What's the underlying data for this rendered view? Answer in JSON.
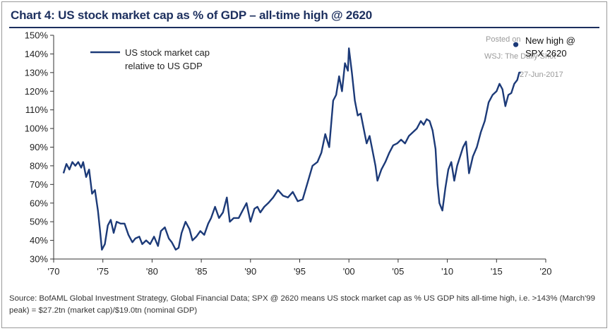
{
  "title": "Chart 4: US stock market cap as % of GDP – all-time high @ 2620",
  "source": "Source: BofAML Global Investment Strategy, Global Financial Data; SPX @ 2620 means US stock market cap as % US GDP hits all-time high, i.e. >143% (March'99 peak) = $27.2tn (market cap)/$19.0tn (nominal GDP)",
  "watermark": {
    "line1": "Posted on",
    "line2": "WSJ: The Daily Shot",
    "line3": "27-Jun-2017"
  },
  "colors": {
    "series": "#1c3a78",
    "axis": "#333333",
    "title": "#1c2f5e"
  },
  "chart_data": {
    "type": "line",
    "title": "Chart 4: US stock market cap as % of GDP – all-time high @ 2620",
    "xlabel": "",
    "ylabel": "",
    "xlim": [
      1970,
      2020
    ],
    "ylim": [
      30,
      150
    ],
    "x_ticks": [
      1970,
      1975,
      1980,
      1985,
      1990,
      1995,
      2000,
      2005,
      2010,
      2015,
      2020
    ],
    "x_tick_labels": [
      "'70",
      "'75",
      "'80",
      "'85",
      "'90",
      "'95",
      "'00",
      "'05",
      "'10",
      "'15",
      "'20"
    ],
    "y_ticks": [
      30,
      40,
      50,
      60,
      70,
      80,
      90,
      100,
      110,
      120,
      130,
      140,
      150
    ],
    "y_tick_labels": [
      "30%",
      "40%",
      "50%",
      "60%",
      "70%",
      "80%",
      "90%",
      "100%",
      "110%",
      "120%",
      "130%",
      "140%",
      "150%"
    ],
    "grid": false,
    "legend": {
      "position": "top-left",
      "entries": [
        "US stock market cap relative to US GDP"
      ]
    },
    "series": [
      {
        "name": "US stock market cap relative to US GDP",
        "x": [
          1971.0,
          1971.3,
          1971.6,
          1971.9,
          1972.2,
          1972.5,
          1972.8,
          1973.0,
          1973.3,
          1973.6,
          1973.9,
          1974.2,
          1974.5,
          1974.7,
          1974.9,
          1975.2,
          1975.5,
          1975.8,
          1976.1,
          1976.4,
          1976.8,
          1977.2,
          1977.6,
          1978.0,
          1978.3,
          1978.7,
          1979.0,
          1979.4,
          1979.8,
          1980.2,
          1980.6,
          1980.9,
          1981.3,
          1981.7,
          1982.0,
          1982.4,
          1982.7,
          1983.0,
          1983.4,
          1983.8,
          1984.1,
          1984.5,
          1984.9,
          1985.3,
          1985.7,
          1986.0,
          1986.4,
          1986.8,
          1987.2,
          1987.6,
          1987.9,
          1988.3,
          1988.8,
          1989.2,
          1989.6,
          1990.0,
          1990.4,
          1990.7,
          1991.0,
          1991.4,
          1991.8,
          1992.3,
          1992.8,
          1993.3,
          1993.8,
          1994.3,
          1994.8,
          1995.3,
          1995.8,
          1996.3,
          1996.8,
          1997.2,
          1997.6,
          1998.0,
          1998.4,
          1998.7,
          1999.0,
          1999.3,
          1999.6,
          1999.9,
          2000.0,
          2000.3,
          2000.6,
          2000.9,
          2001.2,
          2001.5,
          2001.8,
          2002.1,
          2002.4,
          2002.7,
          2002.9,
          2003.3,
          2003.7,
          2004.1,
          2004.5,
          2004.9,
          2005.3,
          2005.7,
          2006.1,
          2006.5,
          2006.9,
          2007.3,
          2007.6,
          2007.9,
          2008.2,
          2008.5,
          2008.8,
          2009.0,
          2009.2,
          2009.5,
          2009.8,
          2010.1,
          2010.4,
          2010.7,
          2011.0,
          2011.3,
          2011.6,
          2011.9,
          2012.2,
          2012.6,
          2013.0,
          2013.4,
          2013.8,
          2014.2,
          2014.6,
          2015.0,
          2015.3,
          2015.6,
          2015.9,
          2016.2,
          2016.5,
          2016.8,
          2017.1,
          2017.3,
          2017.5
        ],
        "values": [
          76,
          81,
          78,
          82,
          80,
          82,
          79,
          82,
          74,
          78,
          65,
          67,
          56,
          46,
          35,
          38,
          48,
          51,
          44,
          50,
          49,
          49,
          43,
          39,
          41,
          42,
          38,
          40,
          38,
          42,
          37,
          45,
          47,
          41,
          39,
          35,
          36,
          44,
          50,
          46,
          40,
          42,
          45,
          43,
          49,
          52,
          58,
          52,
          55,
          63,
          50,
          52,
          52,
          56,
          60,
          50,
          57,
          58,
          55,
          58,
          60,
          63,
          67,
          64,
          63,
          66,
          61,
          62,
          71,
          80,
          82,
          87,
          97,
          90,
          115,
          118,
          128,
          120,
          135,
          131,
          143,
          130,
          115,
          107,
          108,
          100,
          92,
          96,
          88,
          80,
          72,
          78,
          82,
          87,
          91,
          92,
          94,
          92,
          96,
          98,
          100,
          104,
          102,
          105,
          104,
          99,
          89,
          70,
          60,
          56,
          68,
          78,
          82,
          72,
          80,
          85,
          90,
          93,
          76,
          85,
          90,
          98,
          104,
          114,
          118,
          120,
          124,
          121,
          112,
          118,
          119,
          124,
          126,
          130,
          130
        ]
      }
    ],
    "annotations": [
      {
        "text": "New high @ SPX 2620",
        "x": 2017.1,
        "y": 145
      }
    ]
  }
}
